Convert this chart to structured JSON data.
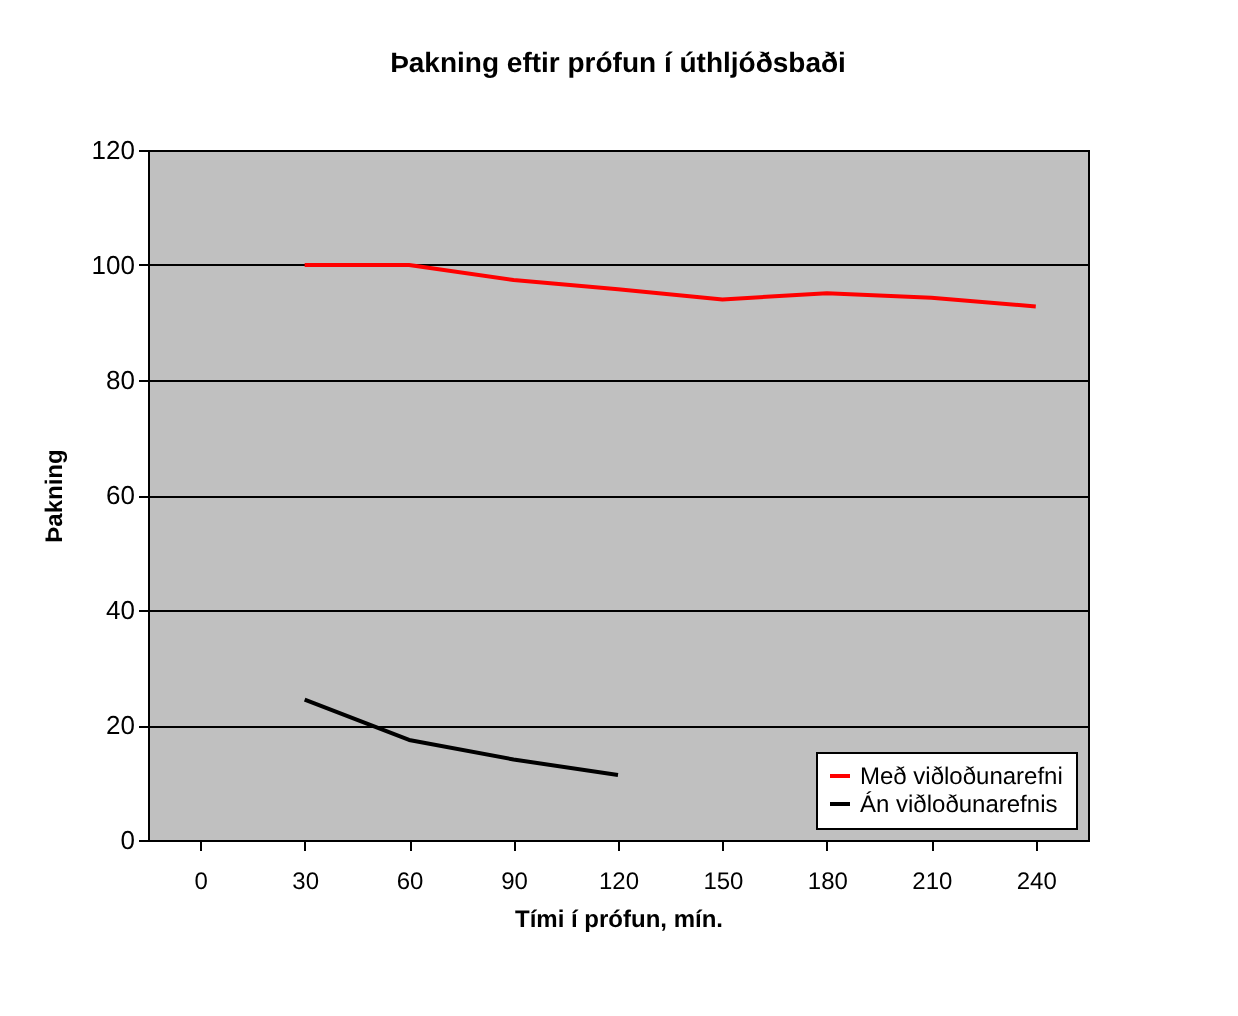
{
  "chart_data": {
    "type": "line",
    "title": "Þakning eftir prófun í úthljóðsbaði",
    "xlabel": "Tími í prófun, mín.",
    "ylabel": "Þakning",
    "categories": [
      "0",
      "30",
      "60",
      "90",
      "120",
      "150",
      "180",
      "210",
      "240"
    ],
    "series": [
      {
        "name": "Með viðloðunarefni",
        "color": "#ff0000",
        "values": [
          null,
          100,
          100,
          97.4,
          95.8,
          94,
          95.1,
          94.3,
          92.8
        ]
      },
      {
        "name": "Án viðloðunarefnis",
        "color": "#000000",
        "values": [
          null,
          24.4,
          17.4,
          14,
          11.3,
          null,
          null,
          null,
          null
        ]
      }
    ],
    "ylim": [
      0,
      120
    ],
    "yticks": [
      0,
      20,
      40,
      60,
      80,
      100,
      120
    ],
    "grid": "y",
    "legend": "bottom right",
    "marker": "none",
    "line_style": "solid"
  }
}
